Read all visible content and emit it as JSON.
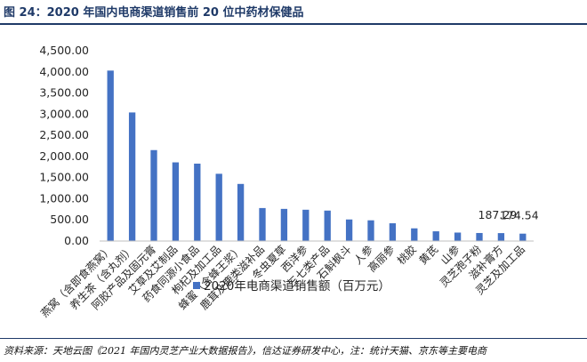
{
  "figure": {
    "title": "图 24：2020 年国内电商渠道销售前 20 位中药材保健品",
    "source": "资料来源：天地云图《2021 年国内灵芝产业大数据报告》，信达证券研发中心，注：统计天猫、京东等主要电商"
  },
  "colors": {
    "bar": "#4472C4",
    "title": "#1f3a68",
    "axis": "#7f7f7f",
    "text": "#262626"
  },
  "chart_data": {
    "type": "bar",
    "title": "",
    "xlabel": "",
    "ylabel": "",
    "ylim": [
      0,
      4500
    ],
    "yticks": [
      0,
      500,
      1000,
      1500,
      2000,
      2500,
      3000,
      3500,
      4000,
      4500
    ],
    "ytick_labels": [
      "0.00",
      "500.00",
      "1,000.00",
      "1,500.00",
      "2,000.00",
      "2,500.00",
      "3,000.00",
      "3,500.00",
      "4,000.00",
      "4,500.00"
    ],
    "categories": [
      "燕窝（含即食燕窝）",
      "养生茶（含丸剂）",
      "阿胶产品及固元膏",
      "艾草及艾制品",
      "药食同源小食品",
      "枸杞及加工品",
      "蜂蜜（含蜂王浆）",
      "鹿茸及鹿类滋补品",
      "冬虫夏草",
      "西洋参",
      "三七类产品",
      "石斛枫斗",
      "人参",
      "高丽参",
      "桃胶",
      "黄芪",
      "山参",
      "灵芝孢子粉",
      "滋补膏方",
      "灵芝及加工品"
    ],
    "series": [
      {
        "name": "2020年电商渠道销售额（百万元）",
        "values": [
          4030,
          3040,
          2150,
          1860,
          1830,
          1590,
          1350,
          780,
          760,
          740,
          720,
          510,
          490,
          420,
          300,
          230,
          200,
          190,
          187.29,
          174.54
        ]
      }
    ],
    "data_labels": [
      {
        "index": 18,
        "text": "187.29"
      },
      {
        "index": 19,
        "text": "174.54"
      }
    ],
    "legend": "bottom-center"
  }
}
